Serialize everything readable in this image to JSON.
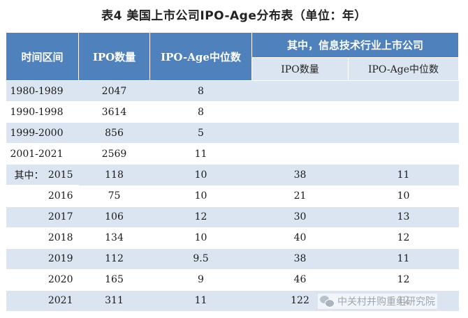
{
  "title": "表4  美国上市公司IPO-Age分布表（单位：年）",
  "headers": {
    "period": "时间区间",
    "ipo_count": "IPO数量",
    "ipo_age_median": "IPO-Age中位数",
    "it_group": "其中，信息技术行业上市公司",
    "it_ipo_count": "IPO数量",
    "it_ipo_age_median": "IPO-Age中位数"
  },
  "rows": [
    {
      "lead": "",
      "period": "1980-1989",
      "ipo_count": "2047",
      "median": "8",
      "it_count": "",
      "it_median": ""
    },
    {
      "lead": "",
      "period": "1990-1998",
      "ipo_count": "3614",
      "median": "8",
      "it_count": "",
      "it_median": ""
    },
    {
      "lead": "",
      "period": "1999-2000",
      "ipo_count": "856",
      "median": "5",
      "it_count": "",
      "it_median": ""
    },
    {
      "lead": "",
      "period": "2001-2021",
      "ipo_count": "2569",
      "median": "11",
      "it_count": "",
      "it_median": ""
    },
    {
      "lead": "其中：",
      "period": "2015",
      "ipo_count": "118",
      "median": "10",
      "it_count": "38",
      "it_median": "11"
    },
    {
      "lead": "",
      "period": "2016",
      "ipo_count": "75",
      "median": "10",
      "it_count": "21",
      "it_median": "10"
    },
    {
      "lead": "",
      "period": "2017",
      "ipo_count": "106",
      "median": "12",
      "it_count": "30",
      "it_median": "13"
    },
    {
      "lead": "",
      "period": "2018",
      "ipo_count": "134",
      "median": "10",
      "it_count": "40",
      "it_median": "12"
    },
    {
      "lead": "",
      "period": "2019",
      "ipo_count": "112",
      "median": "9.5",
      "it_count": "38",
      "it_median": "11"
    },
    {
      "lead": "",
      "period": "2020",
      "ipo_count": "165",
      "median": "9",
      "it_count": "46",
      "it_median": "12"
    },
    {
      "lead": "",
      "period": "2021",
      "ipo_count": "311",
      "median": "11",
      "it_count": "122",
      "it_median": "12"
    }
  ],
  "watermark": {
    "icon": "wechat-icon",
    "text": "中关村并购重组研究院"
  }
}
